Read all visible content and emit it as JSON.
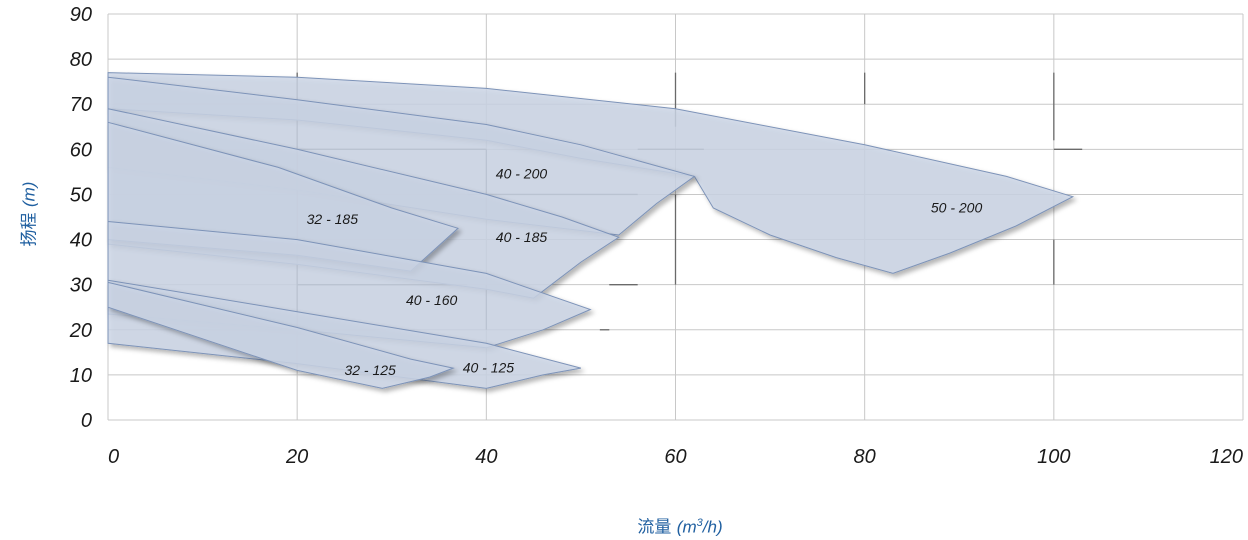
{
  "chart_data": {
    "type": "area",
    "title": "",
    "xlabel": {
      "text": "流量",
      "unit_prefix": "m",
      "unit_sup": "3",
      "unit_suffix": "/h"
    },
    "ylabel": {
      "text": "扬程",
      "unit": "m"
    },
    "xlim": [
      0,
      120
    ],
    "ylim": [
      0,
      90
    ],
    "xticks": [
      0,
      20,
      40,
      60,
      80,
      100,
      120
    ],
    "yticks": [
      0,
      10,
      20,
      30,
      40,
      50,
      60,
      70,
      80,
      90
    ],
    "grid": true,
    "region_color": "#ccd6e6",
    "region_stroke": "#7d93b8",
    "regions": [
      {
        "name": "50 - 200",
        "label_at": [
          87,
          46
        ],
        "outline": [
          [
            0,
            77
          ],
          [
            20,
            76
          ],
          [
            40,
            73.5
          ],
          [
            60,
            69
          ],
          [
            80,
            61
          ],
          [
            95,
            54
          ],
          [
            102,
            49.5
          ],
          [
            96,
            43
          ],
          [
            89,
            37
          ],
          [
            83,
            32.5
          ],
          [
            77,
            36
          ],
          [
            70,
            41
          ],
          [
            64,
            47
          ],
          [
            62,
            54
          ],
          [
            50,
            58
          ],
          [
            40,
            62
          ],
          [
            20,
            66.5
          ],
          [
            0,
            69
          ]
        ]
      },
      {
        "name": "40 - 200",
        "label_at": [
          41,
          53.5
        ],
        "outline": [
          [
            0,
            76
          ],
          [
            20,
            71
          ],
          [
            40,
            65.5
          ],
          [
            50,
            61
          ],
          [
            62,
            54
          ],
          [
            58,
            48
          ],
          [
            54,
            41
          ],
          [
            40,
            44.5
          ],
          [
            20,
            51
          ],
          [
            0,
            56
          ]
        ]
      },
      {
        "name": "40 - 185",
        "label_at": [
          41,
          39.5
        ],
        "outline": [
          [
            0,
            69
          ],
          [
            20,
            60
          ],
          [
            40,
            50
          ],
          [
            48,
            45
          ],
          [
            54,
            40.5
          ],
          [
            50,
            35
          ],
          [
            45,
            27
          ],
          [
            40,
            29
          ],
          [
            20,
            34.5
          ],
          [
            0,
            39
          ]
        ]
      },
      {
        "name": "32 - 185",
        "label_at": [
          21,
          43.5
        ],
        "outline": [
          [
            0,
            66
          ],
          [
            18,
            56
          ],
          [
            30,
            47
          ],
          [
            37,
            42.5
          ],
          [
            32,
            33
          ],
          [
            20,
            36.5
          ],
          [
            0,
            40
          ]
        ]
      },
      {
        "name": "40 - 160",
        "label_at": [
          31.5,
          25.5
        ],
        "outline": [
          [
            0,
            44
          ],
          [
            20,
            40
          ],
          [
            40,
            32.5
          ],
          [
            51,
            24.5
          ],
          [
            46,
            20
          ],
          [
            40,
            16
          ],
          [
            20,
            20
          ],
          [
            0,
            23.5
          ]
        ]
      },
      {
        "name": "40 - 125",
        "label_at": [
          37.5,
          10.5
        ],
        "outline": [
          [
            0,
            31
          ],
          [
            20,
            24
          ],
          [
            40,
            17
          ],
          [
            50,
            11.5
          ],
          [
            46,
            10
          ],
          [
            40,
            7
          ],
          [
            20,
            12.5
          ],
          [
            0,
            17
          ]
        ]
      },
      {
        "name": "32 - 125",
        "label_at": [
          25,
          10
        ],
        "outline": [
          [
            0,
            30.5
          ],
          [
            20,
            20.5
          ],
          [
            32,
            13.5
          ],
          [
            36.5,
            11.5
          ],
          [
            34,
            9.5
          ],
          [
            29,
            7
          ],
          [
            20,
            11
          ],
          [
            0,
            25
          ]
        ]
      }
    ],
    "extra_lines": [
      [
        [
          20,
          60
        ],
        [
          40,
          60
        ]
      ],
      [
        [
          40,
          60
        ],
        [
          40,
          45
        ]
      ],
      [
        [
          38,
          50
        ],
        [
          56,
          50
        ]
      ],
      [
        [
          20,
          30
        ],
        [
          38,
          30
        ]
      ],
      [
        [
          40,
          30
        ],
        [
          40,
          20
        ]
      ],
      [
        [
          56,
          60
        ],
        [
          63,
          60
        ]
      ],
      [
        [
          53,
          30
        ],
        [
          56,
          30
        ]
      ],
      [
        [
          100,
          60
        ],
        [
          103,
          60
        ]
      ],
      [
        [
          60,
          50
        ],
        [
          60,
          30
        ]
      ],
      [
        [
          20,
          77
        ],
        [
          20,
          20
        ]
      ],
      [
        [
          80,
          77
        ],
        [
          80,
          70
        ]
      ],
      [
        [
          100,
          77
        ],
        [
          100,
          62
        ]
      ],
      [
        [
          100,
          40
        ],
        [
          100,
          30
        ]
      ],
      [
        [
          60,
          77
        ],
        [
          60,
          65
        ]
      ],
      [
        [
          52,
          20
        ],
        [
          53,
          20
        ]
      ]
    ]
  }
}
